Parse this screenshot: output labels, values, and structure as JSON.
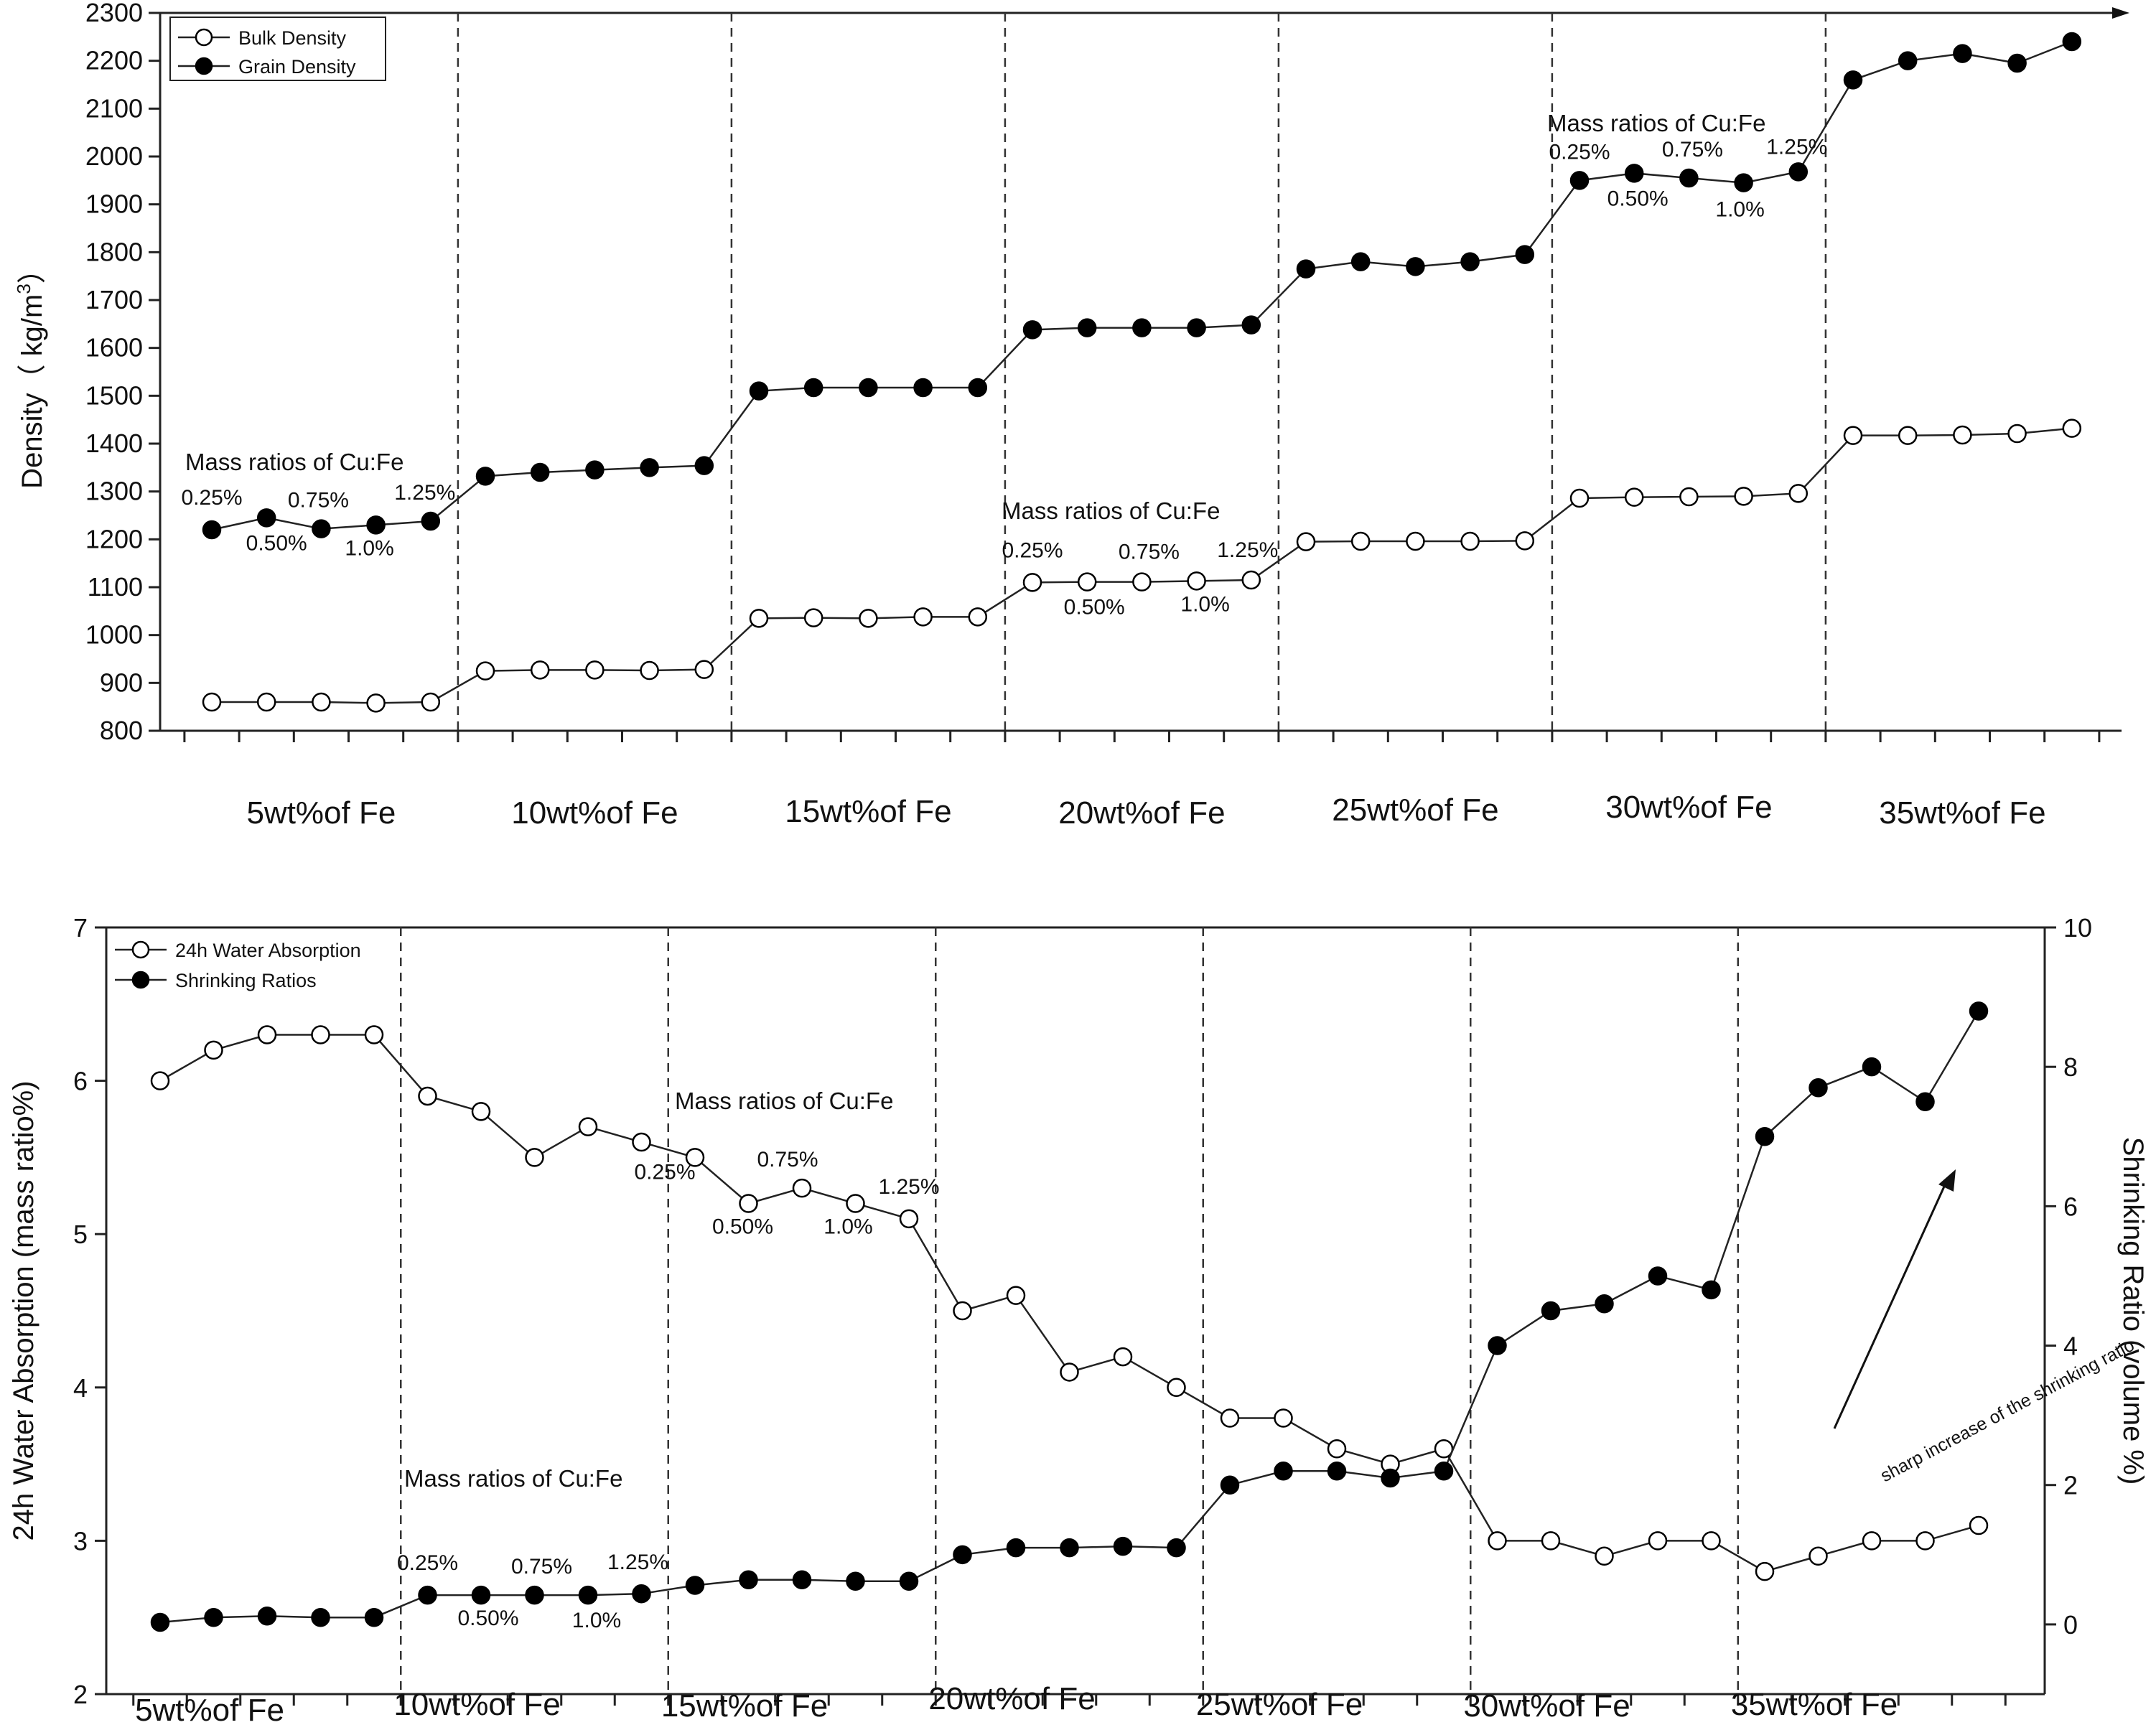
{
  "chart_data": [
    {
      "type": "line",
      "ylabel": "Density（ kg/m",
      "ylabel_sup": "3",
      "ylabel_end": "）",
      "ylim": [
        800,
        2300
      ],
      "yticks": [
        "800",
        "900",
        "1000",
        "1100",
        "1200",
        "1300",
        "1400",
        "1500",
        "1600",
        "1700",
        "1800",
        "1900",
        "2000",
        "2100",
        "2200",
        "2300"
      ],
      "groups": [
        "5wt%of Fe",
        "10wt%of Fe",
        "15wt%of Fe",
        "20wt%of Fe",
        "25wt%of Fe",
        "30wt%of Fe",
        "35wt%of Fe"
      ],
      "series": [
        {
          "name": "Bulk Density",
          "marker": "open",
          "values": [
            860,
            860,
            860,
            858,
            860,
            925,
            927,
            927,
            926,
            928,
            1035,
            1036,
            1035,
            1038,
            1038,
            1110,
            1111,
            1111,
            1113,
            1115,
            1195,
            1196,
            1196,
            1196,
            1197,
            1286,
            1288,
            1289,
            1290,
            1296,
            1417,
            1417,
            1418,
            1421,
            1432
          ]
        },
        {
          "name": "Grain Density",
          "marker": "filled",
          "values": [
            1220,
            1245,
            1222,
            1230,
            1238,
            1332,
            1340,
            1345,
            1350,
            1354,
            1510,
            1517,
            1517,
            1517,
            1517,
            1638,
            1642,
            1642,
            1642,
            1648,
            1765,
            1780,
            1770,
            1780,
            1795,
            1950,
            1965,
            1955,
            1945,
            1968,
            2160,
            2200,
            2215,
            2195,
            2240
          ]
        }
      ],
      "annotations": [
        {
          "title": "Mass ratios of Cu:Fe",
          "ratios": [
            "0.25%",
            "0.50%",
            "0.75%",
            "1.0%",
            "1.25%"
          ]
        },
        {
          "title": "Mass ratios of Cu:Fe",
          "ratios": [
            "0.25%",
            "0.50%",
            "0.75%",
            "1.0%",
            "1.25%"
          ]
        },
        {
          "title": "Mass ratios of Cu:Fe",
          "ratios": [
            "0.25%",
            "0.50%",
            "0.75%",
            "1.0%",
            "1.25%"
          ]
        }
      ]
    },
    {
      "type": "line",
      "ylabel": "24h Water Absorption (mass ratio%)",
      "y2label": "Shrinking Ratio (volume %)",
      "ylim": [
        2,
        7
      ],
      "y2lim": [
        -1,
        10
      ],
      "yticks": [
        "2",
        "3",
        "4",
        "5",
        "6",
        "7"
      ],
      "y2ticks": [
        "0",
        "2",
        "4",
        "6",
        "8",
        "10"
      ],
      "groups": [
        "5wt%of Fe",
        "10wt%of Fe",
        "15wt%of Fe",
        "20wt%of Fe",
        "25wt%of Fe",
        "30wt%of Fe",
        "35wt%of Fe"
      ],
      "series": [
        {
          "name": "24h Water Absorption",
          "marker": "open",
          "axis": "left",
          "values": [
            6.0,
            6.2,
            6.3,
            6.3,
            6.3,
            5.9,
            5.8,
            5.5,
            5.7,
            5.6,
            5.5,
            5.2,
            5.3,
            5.2,
            5.1,
            4.5,
            4.6,
            4.1,
            4.2,
            4.0,
            3.8,
            3.8,
            3.6,
            3.5,
            3.6,
            3.0,
            3.0,
            2.9,
            3.0,
            3.0,
            2.8,
            2.9,
            3.0,
            3.0,
            3.1
          ]
        },
        {
          "name": "Shrinking Ratios",
          "marker": "filled",
          "axis": "right",
          "values": [
            0.03,
            0.1,
            0.12,
            0.1,
            0.1,
            0.42,
            0.42,
            0.42,
            0.42,
            0.44,
            0.56,
            0.64,
            0.64,
            0.62,
            0.62,
            1.0,
            1.1,
            1.1,
            1.12,
            1.1,
            2.0,
            2.2,
            2.2,
            2.1,
            2.2,
            4.0,
            4.5,
            4.6,
            5.0,
            4.8,
            7.0,
            7.7,
            8.0,
            7.5,
            8.8
          ]
        }
      ],
      "annotations": [
        {
          "title": "Mass ratios of Cu:Fe",
          "ratios": [
            "0.25%",
            "0.50%",
            "0.75%",
            "1.0%",
            "1.25%"
          ]
        },
        {
          "title": "Mass ratios of Cu:Fe",
          "ratios": [
            "0.25%",
            "0.50%",
            "0.75%",
            "1.0%",
            "1.25%"
          ]
        }
      ],
      "arrow_label": "sharp increase  of the shrinking ratio"
    }
  ]
}
